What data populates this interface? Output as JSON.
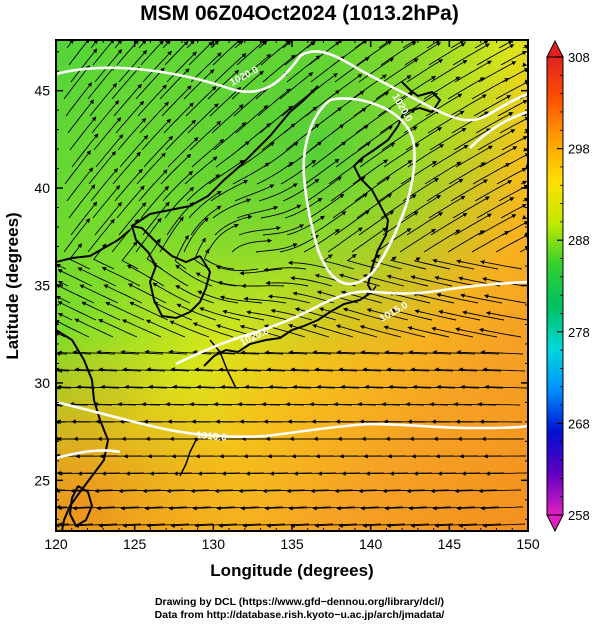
{
  "chart_data": {
    "type": "heatmap",
    "title": "MSM 06Z04Oct2024 (1013.2hPa)",
    "xlabel": "Longitude (degrees)",
    "ylabel": "Latitude  (degrees)",
    "xlim": [
      120,
      150
    ],
    "ylim": [
      22.4,
      47.6
    ],
    "x_ticks": [
      "120",
      "125",
      "130",
      "135",
      "140",
      "145",
      "150"
    ],
    "y_ticks": [
      "25",
      "30",
      "35",
      "40",
      "45"
    ],
    "colorbar": {
      "min": 258,
      "max": 308,
      "ticks": [
        "258",
        "268",
        "278",
        "288",
        "298",
        "308"
      ],
      "colors": [
        "#e020c0",
        "#6000c0",
        "#0010d0",
        "#0090ff",
        "#00d8d8",
        "#00c060",
        "#30d030",
        "#c0e800",
        "#ffe000",
        "#ffa000",
        "#ff5000",
        "#e02020"
      ]
    },
    "pressure_contours": [
      "1020.0",
      "1020.0",
      "1020.0",
      "1015.0",
      "1010.0"
    ],
    "temperature_field": {
      "north": 290,
      "south_east": 298,
      "south_west_coast": 299
    },
    "overlays": [
      "temperature shading",
      "isobars",
      "streamlines",
      "coastlines"
    ]
  },
  "credits": {
    "line1": "Drawing by DCL (https://www.gfd−dennou.org/library/dcl/)",
    "line2": "Data from http://database.rish.kyoto−u.ac.jp/arch/jmadata/"
  }
}
